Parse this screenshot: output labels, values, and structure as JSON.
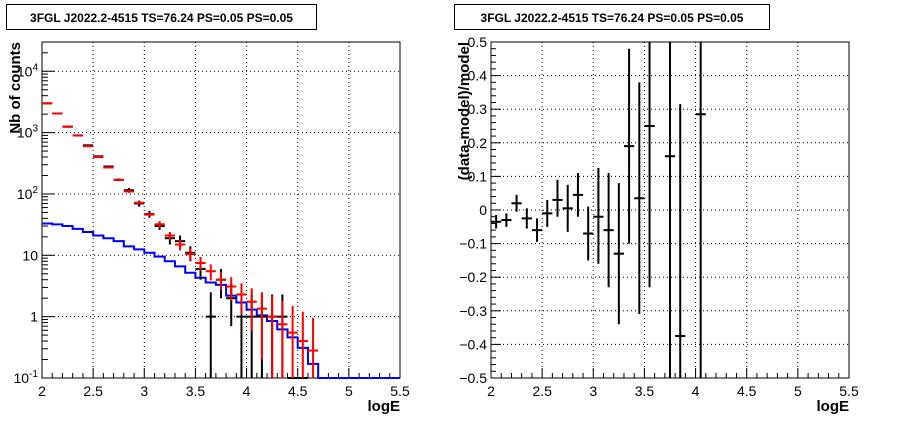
{
  "chart_data": [
    {
      "type": "histogram",
      "title": "3FGL J2022.2-4515 TS=76.24 PS=0.05 PS=0.05",
      "xlabel": "logE",
      "ylabel": "Nb of counts",
      "xlim": [
        2,
        5.5
      ],
      "ylim": [
        0.1,
        30000
      ],
      "yscale": "log",
      "grid": true,
      "xticks": [
        "2",
        "2.5",
        "3",
        "3.5",
        "4",
        "4.5",
        "5",
        "5.5"
      ],
      "yticks": [
        "10^-1",
        "1",
        "10",
        "10^2",
        "10^3",
        "10^4"
      ],
      "bin_width": 0.1,
      "series": [
        {
          "type": "step",
          "color": "#0000ff",
          "x_edges": [
            2.0,
            2.1,
            2.2,
            2.3,
            2.4,
            2.5,
            2.6,
            2.7,
            2.8,
            2.9,
            3.0,
            3.1,
            3.2,
            3.3,
            3.4,
            3.5,
            3.6,
            3.7,
            3.8,
            3.9,
            4.0,
            4.1,
            4.2,
            4.3,
            4.4,
            4.5,
            4.6,
            4.7,
            4.8,
            4.9,
            5.0,
            5.1,
            5.2,
            5.3,
            5.4,
            5.5
          ],
          "values": [
            33,
            32,
            30,
            27,
            24,
            21,
            19,
            17,
            14,
            12.5,
            11,
            9.5,
            8,
            6.6,
            5.2,
            4.3,
            3.6,
            3.3,
            2.2,
            1.7,
            1.3,
            1.05,
            0.85,
            0.62,
            0.46,
            0.31,
            0.17,
            0.1,
            0.1,
            0.1,
            0.1,
            0.1,
            0.1,
            0.1,
            0.1
          ]
        },
        {
          "type": "errorbar",
          "color": "#ff0000",
          "x": [
            2.05,
            2.15,
            2.25,
            2.35,
            2.45,
            2.55,
            2.65,
            2.75,
            2.85,
            2.95,
            3.05,
            3.15,
            3.25,
            3.35,
            3.45,
            3.55,
            3.65,
            3.75,
            3.85,
            3.95,
            4.05,
            4.15,
            4.25,
            4.35,
            4.45,
            4.55,
            4.65
          ],
          "y": [
            3000,
            2050,
            1250,
            900,
            600,
            400,
            270,
            170,
            110,
            72,
            46,
            32,
            21,
            15,
            10.5,
            7.5,
            5.5,
            4,
            3.1,
            2.3,
            1.75,
            1.35,
            1.0,
            0.75,
            0.55,
            0.4,
            0.28
          ],
          "ylow": [
            2900,
            1990,
            1210,
            880,
            590,
            390,
            264,
            165,
            105,
            68,
            43,
            28,
            18,
            12,
            8.2,
            5.6,
            3.9,
            2.7,
            1.8,
            1.1,
            0.6,
            0.2,
            0.1,
            0.1,
            0.1,
            0.1,
            0.1
          ],
          "yhigh": [
            3100,
            2110,
            1290,
            920,
            610,
            410,
            276,
            175,
            115,
            76,
            49,
            36,
            24,
            18,
            12.8,
            9.4,
            7.1,
            5.3,
            4.4,
            3.5,
            2.9,
            2.5,
            2.2,
            1.8,
            1.5,
            1.2,
            0.95
          ]
        },
        {
          "type": "errorbar",
          "color": "#000000",
          "x": [
            2.05,
            2.15,
            2.25,
            2.35,
            2.45,
            2.55,
            2.65,
            2.75,
            2.85,
            2.95,
            3.05,
            3.15,
            3.25,
            3.35,
            3.45,
            3.55,
            3.65,
            3.75,
            3.85,
            3.95,
            4.05,
            4.15,
            4.25,
            4.35,
            4.45,
            4.55
          ],
          "y": [
            3000,
            2050,
            1250,
            900,
            620,
            410,
            280,
            170,
            115,
            70,
            47,
            30,
            19,
            17,
            11,
            6,
            1,
            4,
            2,
            1,
            1,
            1,
            1,
            1,
            0.1,
            0.1
          ],
          "ylow": [
            2920,
            1990,
            1210,
            870,
            600,
            395,
            270,
            162,
            105,
            62,
            41,
            26,
            15,
            13,
            8,
            4,
            0.1,
            2,
            0.7,
            0.1,
            0.1,
            0.1,
            0.1,
            0.1,
            0.1,
            0.1
          ],
          "yhigh": [
            3080,
            2110,
            1290,
            930,
            640,
            425,
            290,
            178,
            125,
            78,
            53,
            35,
            23,
            21,
            14,
            8.5,
            2.5,
            6,
            3.5,
            2.3,
            2.3,
            2.3,
            2.3,
            2.3,
            0.1,
            0.1
          ]
        }
      ]
    },
    {
      "type": "errorbar",
      "title": "3FGL J2022.2-4515 TS=76.24 PS=0.05 PS=0.05",
      "xlabel": "logE",
      "ylabel": "(data-model)/model",
      "xlim": [
        2,
        5.5
      ],
      "ylim": [
        -0.5,
        0.5
      ],
      "grid": true,
      "xticks": [
        "2",
        "2.5",
        "3",
        "3.5",
        "4",
        "4.5",
        "5",
        "5.5"
      ],
      "yticks": [
        "-0.5",
        "-0.4",
        "-0.3",
        "-0.2",
        "-0.1",
        "0",
        "0.1",
        "0.2",
        "0.3",
        "0.4",
        "0.5"
      ],
      "bin_width": 0.1,
      "series": [
        {
          "color": "#000000",
          "x": [
            2.05,
            2.15,
            2.25,
            2.35,
            2.45,
            2.55,
            2.65,
            2.75,
            2.85,
            2.95,
            3.05,
            3.15,
            3.25,
            3.35,
            3.45,
            3.55,
            3.75,
            3.85,
            4.05
          ],
          "y": [
            -0.035,
            -0.03,
            0.02,
            -0.025,
            -0.06,
            -0.01,
            0.03,
            0.005,
            0.045,
            -0.07,
            -0.02,
            -0.06,
            -0.13,
            0.19,
            0.035,
            0.25,
            0.16,
            -0.375,
            0.285
          ],
          "ylow": [
            -0.055,
            -0.05,
            -0.005,
            -0.055,
            -0.095,
            -0.05,
            -0.02,
            -0.065,
            -0.02,
            -0.15,
            -0.16,
            -0.23,
            -0.34,
            -0.1,
            -0.31,
            -0.23,
            -0.5,
            -0.5,
            -0.5
          ],
          "yhigh": [
            -0.015,
            -0.01,
            0.045,
            0.005,
            -0.025,
            0.03,
            0.09,
            0.075,
            0.11,
            0.01,
            0.125,
            0.11,
            0.08,
            0.48,
            0.38,
            0.5,
            0.5,
            0.315,
            0.5
          ]
        }
      ]
    }
  ]
}
